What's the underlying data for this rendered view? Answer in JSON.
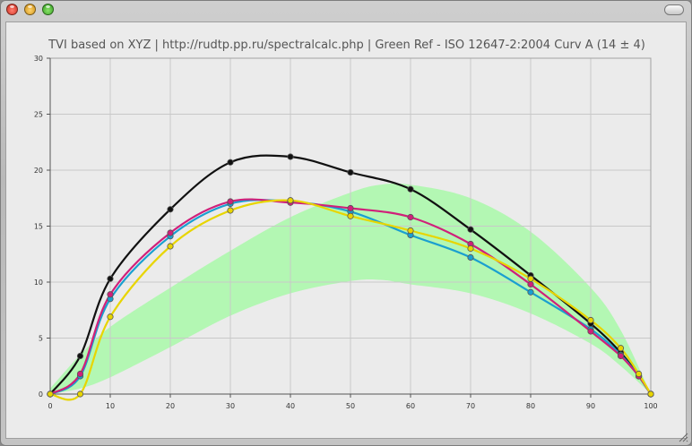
{
  "chart_data": {
    "type": "line",
    "title": "TVI based on XYZ | http://rudtp.pp.ru/spectralcalc.php | Green Ref - ISO 12647-2:2004 Curv A (14 ± 4)",
    "xlim": [
      0,
      100
    ],
    "ylim": [
      0,
      30
    ],
    "x_ticks": [
      0,
      10,
      20,
      30,
      40,
      50,
      60,
      70,
      80,
      90,
      100
    ],
    "y_ticks": [
      0,
      5,
      10,
      15,
      20,
      25,
      30
    ],
    "grid": true,
    "tolerance_band": {
      "color": "#b3f7b3",
      "x": [
        0,
        5,
        10,
        20,
        30,
        40,
        50,
        55,
        60,
        70,
        80,
        90,
        95,
        100
      ],
      "upper": [
        0.5,
        3.5,
        6.0,
        9.5,
        12.8,
        15.8,
        18.0,
        18.7,
        18.7,
        17.5,
        14.5,
        9.5,
        5.7,
        0
      ],
      "lower": [
        0,
        0.5,
        1.5,
        4.2,
        7.0,
        9.0,
        10.1,
        10.2,
        9.8,
        9.0,
        7.2,
        4.5,
        2.5,
        0
      ]
    },
    "series": [
      {
        "color": "#111111",
        "x": [
          0,
          5,
          10,
          20,
          30,
          40,
          50,
          60,
          70,
          80,
          90,
          95,
          98,
          100
        ],
        "y": [
          0,
          3.4,
          10.3,
          16.5,
          20.7,
          21.2,
          19.8,
          18.3,
          14.7,
          10.6,
          6.3,
          3.7,
          1.6,
          0
        ]
      },
      {
        "color": "#1a9fd0",
        "x": [
          0,
          5,
          10,
          20,
          30,
          40,
          50,
          60,
          70,
          80,
          90,
          95,
          98,
          100
        ],
        "y": [
          0,
          1.6,
          8.5,
          14.1,
          17.0,
          17.2,
          16.3,
          14.2,
          12.2,
          9.1,
          5.8,
          3.5,
          1.6,
          0
        ]
      },
      {
        "color": "#d0207a",
        "x": [
          0,
          5,
          10,
          20,
          30,
          40,
          50,
          60,
          70,
          80,
          90,
          95,
          98,
          100
        ],
        "y": [
          0,
          1.8,
          8.9,
          14.4,
          17.2,
          17.1,
          16.6,
          15.8,
          13.4,
          9.8,
          5.6,
          3.4,
          1.6,
          0
        ]
      },
      {
        "color": "#e8d500",
        "x": [
          0,
          5,
          10,
          20,
          30,
          40,
          50,
          60,
          70,
          80,
          90,
          95,
          98,
          100
        ],
        "y": [
          0,
          0,
          6.9,
          13.2,
          16.4,
          17.3,
          15.9,
          14.6,
          13.0,
          10.3,
          6.6,
          4.1,
          1.8,
          0
        ]
      }
    ]
  }
}
